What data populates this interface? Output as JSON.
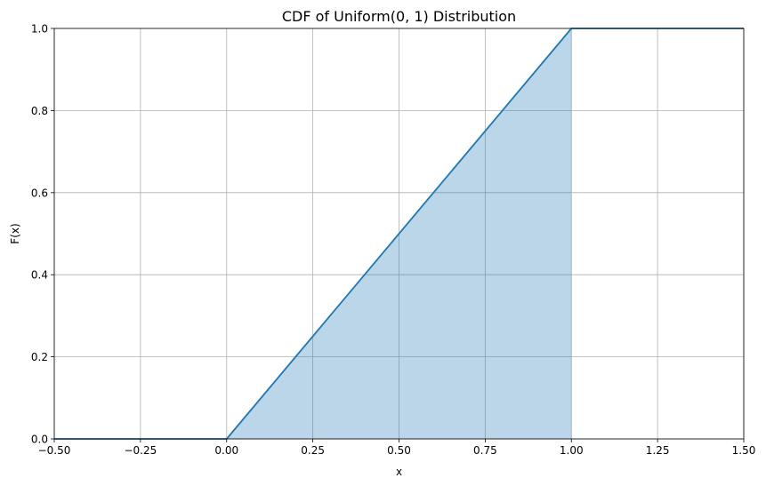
{
  "chart_data": {
    "type": "line",
    "title": "CDF of Uniform(0, 1) Distribution",
    "xlabel": "x",
    "ylabel": "F(x)",
    "xlim": [
      -0.5,
      1.5
    ],
    "ylim": [
      0.0,
      1.0
    ],
    "grid": true,
    "xticks": [
      -0.5,
      -0.25,
      0.0,
      0.25,
      0.5,
      0.75,
      1.0,
      1.25,
      1.5
    ],
    "xtick_labels": [
      "−0.50",
      "−0.25",
      "0.00",
      "0.25",
      "0.50",
      "0.75",
      "1.00",
      "1.25",
      "1.50"
    ],
    "yticks": [
      0.0,
      0.2,
      0.4,
      0.6,
      0.8,
      1.0
    ],
    "ytick_labels": [
      "0.0",
      "0.2",
      "0.4",
      "0.6",
      "0.8",
      "1.0"
    ],
    "series": [
      {
        "x": [
          -0.5,
          0.0,
          1.0,
          1.5
        ],
        "y": [
          0.0,
          0.0,
          1.0,
          1.0
        ],
        "color": "#1f77b4"
      }
    ],
    "fill": {
      "x": [
        0.0,
        1.0
      ],
      "y": [
        0.0,
        1.0
      ],
      "color": "#1f77b4",
      "alpha": 0.3
    }
  }
}
